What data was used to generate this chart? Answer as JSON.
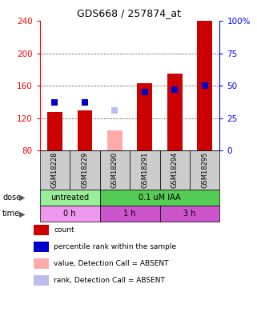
{
  "title": "GDS668 / 257874_at",
  "samples": [
    "GSM18228",
    "GSM18229",
    "GSM18290",
    "GSM18291",
    "GSM18294",
    "GSM18295"
  ],
  "bar_values": [
    128,
    130,
    105,
    163,
    175,
    240
  ],
  "bar_absent": [
    false,
    false,
    true,
    false,
    false,
    false
  ],
  "rank_values": [
    140,
    140,
    130,
    152,
    155,
    160
  ],
  "rank_absent": [
    false,
    false,
    true,
    false,
    false,
    false
  ],
  "ymin": 80,
  "ymax": 240,
  "yticks_left": [
    80,
    120,
    160,
    200,
    240
  ],
  "yticks_right_vals": [
    0,
    25,
    50,
    75,
    100
  ],
  "yticks_right_labels": [
    "0",
    "25",
    "50",
    "75",
    "100%"
  ],
  "bar_color_present": "#cc0000",
  "bar_color_absent": "#ffaaaa",
  "rank_color_present": "#0000cc",
  "rank_color_absent": "#bbbbee",
  "rank_square_size": 6,
  "dose_groups": [
    {
      "label": "untreated",
      "cols": [
        0,
        1
      ],
      "color": "#99ee99"
    },
    {
      "label": "0.1 uM IAA",
      "cols": [
        2,
        3,
        4,
        5
      ],
      "color": "#55cc55"
    }
  ],
  "time_groups": [
    {
      "label": "0 h",
      "cols": [
        0,
        1
      ],
      "color": "#ee99ee"
    },
    {
      "label": "1 h",
      "cols": [
        2,
        3
      ],
      "color": "#cc55cc"
    },
    {
      "label": "3 h",
      "cols": [
        4,
        5
      ],
      "color": "#cc55cc"
    }
  ],
  "legend_items": [
    {
      "label": "count",
      "color": "#cc0000"
    },
    {
      "label": "percentile rank within the sample",
      "color": "#0000cc"
    },
    {
      "label": "value, Detection Call = ABSENT",
      "color": "#ffaaaa"
    },
    {
      "label": "rank, Detection Call = ABSENT",
      "color": "#bbbbee"
    }
  ],
  "title_fontsize": 9,
  "tick_fontsize": 7.5,
  "sample_fontsize": 6,
  "row_fontsize": 7,
  "legend_fontsize": 6.5
}
